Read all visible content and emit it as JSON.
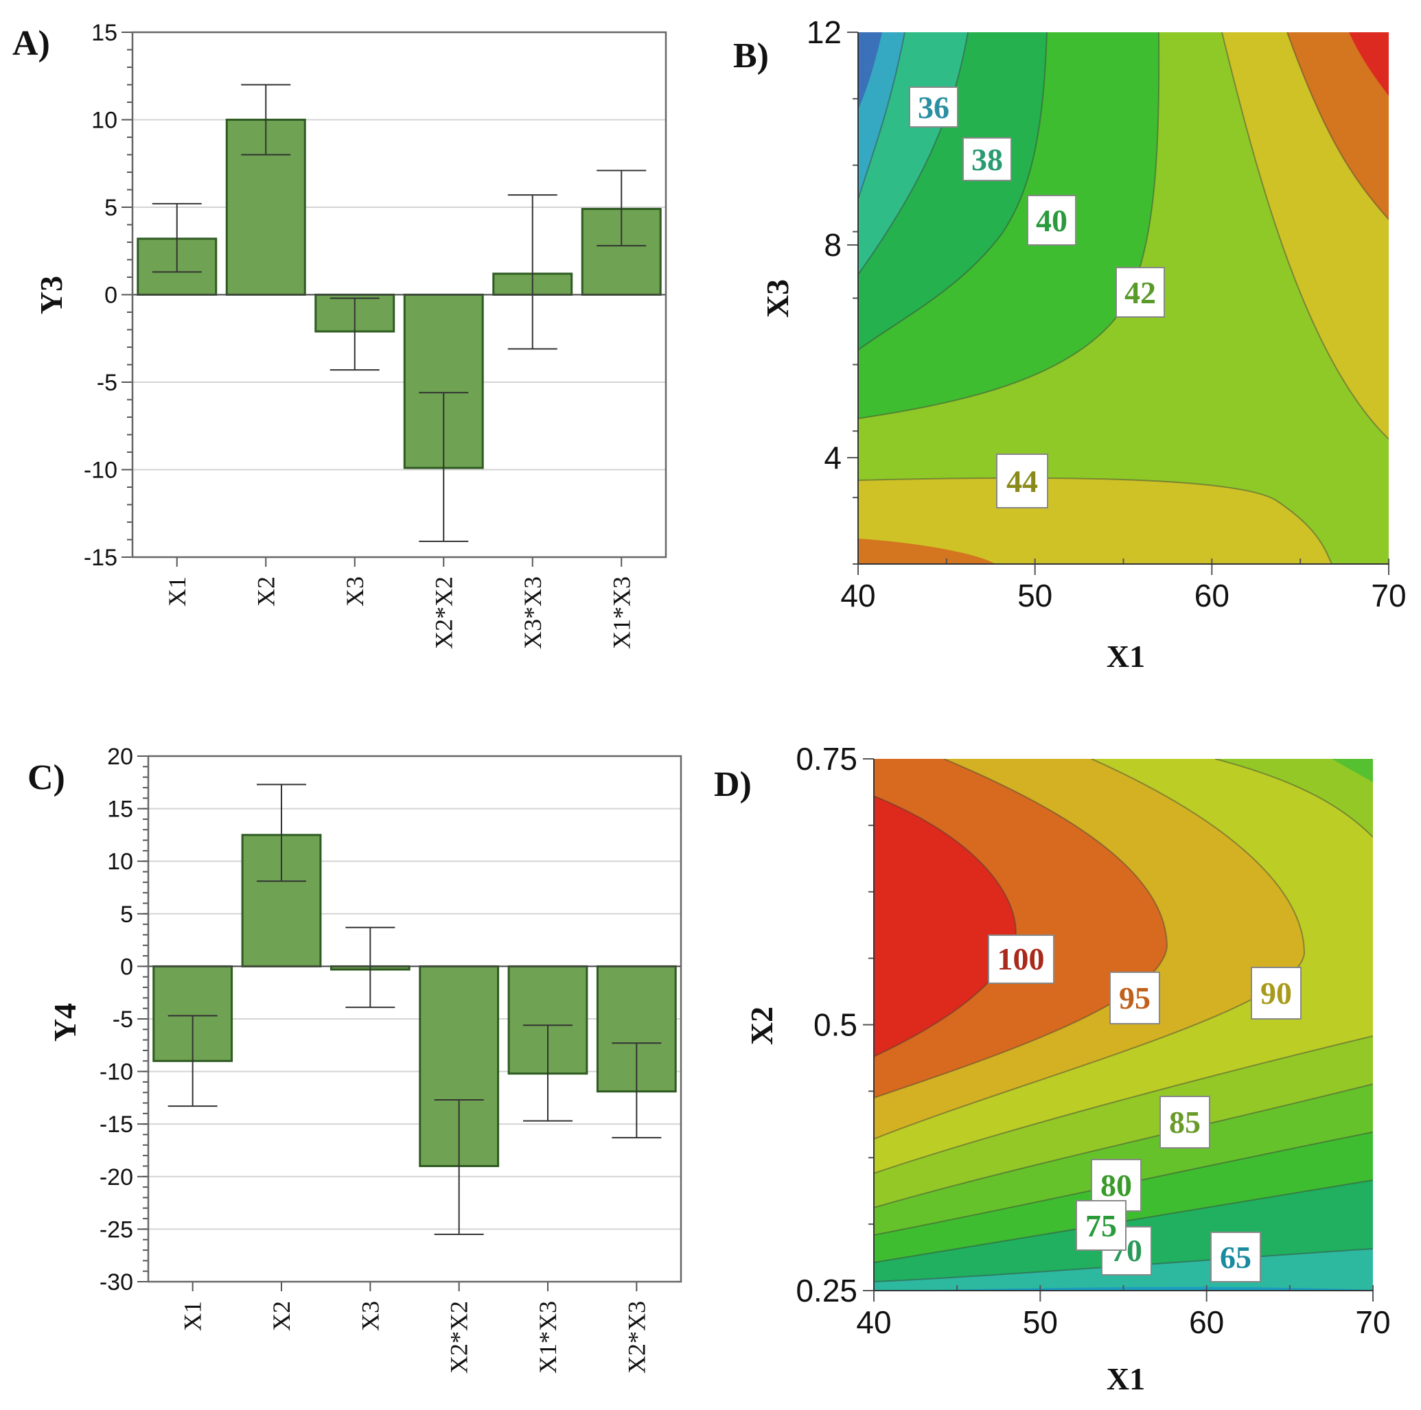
{
  "chart_data": [
    {
      "panel": "A)",
      "type": "bar",
      "ylabel": "Y3",
      "ylim": [
        -15,
        15
      ],
      "yticks": [
        15,
        10,
        5,
        0,
        -5,
        -10,
        -15
      ],
      "categories": [
        "X1",
        "X2",
        "X3",
        "X2*X2",
        "X3*X3",
        "X1*X3"
      ],
      "values": [
        3.2,
        10.0,
        -2.1,
        -9.9,
        1.2,
        4.9
      ],
      "error_low": [
        1.3,
        8.0,
        -4.3,
        -14.1,
        -3.1,
        2.8
      ],
      "error_high": [
        5.2,
        12.0,
        -0.2,
        -5.6,
        5.7,
        7.1
      ],
      "bar_color": "#6fa353"
    },
    {
      "panel": "B)",
      "type": "contour",
      "xlabel": "X1",
      "ylabel": "X3",
      "xlim": [
        40,
        70
      ],
      "ylim": [
        2,
        12
      ],
      "xticks": [
        40,
        50,
        60,
        70
      ],
      "yticks": [
        12,
        8,
        4
      ],
      "contour_labels": [
        "36",
        "38",
        "40",
        "42",
        "44"
      ]
    },
    {
      "panel": "C)",
      "type": "bar",
      "ylabel": "Y4",
      "ylim": [
        -30,
        20
      ],
      "yticks": [
        20,
        15,
        10,
        5,
        0,
        -5,
        -10,
        -15,
        -20,
        -25,
        -30
      ],
      "categories": [
        "X1",
        "X2",
        "X3",
        "X2*X2",
        "X1*X3",
        "X2*X3"
      ],
      "values": [
        -9.0,
        12.5,
        -0.3,
        -19.0,
        -10.2,
        -11.9
      ],
      "error_low": [
        -13.3,
        8.1,
        -3.9,
        -25.5,
        -14.7,
        -16.3
      ],
      "error_high": [
        -4.7,
        17.3,
        3.7,
        -12.7,
        -5.6,
        -7.3
      ],
      "bar_color": "#6fa353"
    },
    {
      "panel": "D)",
      "type": "contour",
      "xlabel": "X1",
      "ylabel": "X2",
      "xlim": [
        40,
        70
      ],
      "ylim": [
        0.25,
        0.75
      ],
      "xticks": [
        40,
        50,
        60,
        70
      ],
      "yticks": [
        "0.75",
        "0.5",
        "0.25"
      ],
      "contour_labels": [
        "100",
        "95",
        "90",
        "85",
        "80",
        "75",
        "70",
        "65"
      ]
    }
  ]
}
